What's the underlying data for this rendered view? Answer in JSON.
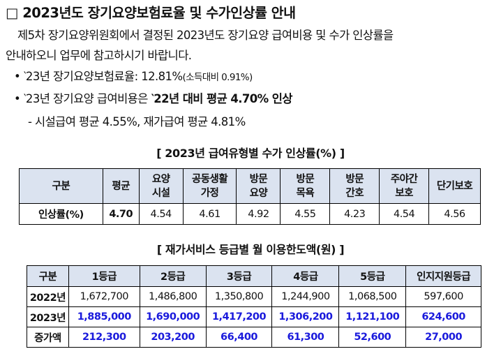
{
  "title": "□ 2023년도 장기요양보험료율 및 수가인상률 안내",
  "intro": {
    "line1": "제5차 장기요양위원회에서 결정된 2023년도 장기요양 급여비용 및 수가 인상률을",
    "line2": "안내하오니 업무에 참고하시기 바랍니다."
  },
  "bullets": {
    "b1_main": "• ‵23년 장기요양보험료율: 12.81%",
    "b1_note": "(소득대비 0.91%)",
    "b2_main": "• ‵23년 장기요양 급여비용은 ",
    "b2_strong": "‵22년 대비 평균 4.70% 인상",
    "b3": "- 시설급여 평균 4.55%, 재가급여 평균 4.81%"
  },
  "table1": {
    "caption": "[ 2023년 급여유형별 수가 인상률(%) ]",
    "headers": [
      "구분",
      "평균",
      "요양\n시설",
      "공동생활\n가정",
      "방문\n요양",
      "방문\n목욕",
      "방문\n간호",
      "주야간\n보호",
      "단기보호"
    ],
    "row_label": "인상률(%)",
    "values": [
      "4.70",
      "4.54",
      "4.61",
      "4.92",
      "4.55",
      "4.23",
      "4.54",
      "4.56"
    ]
  },
  "table2": {
    "caption": "[ 재가서비스 등급별 월 이용한도액(원) ]",
    "headers": [
      "구분",
      "1등급",
      "2등급",
      "3등급",
      "4등급",
      "5등급",
      "인지지원등급"
    ],
    "rows": [
      {
        "label": "2022년",
        "values": [
          "1,672,700",
          "1,486,800",
          "1,350,800",
          "1,244,900",
          "1,068,500",
          "597,600"
        ]
      },
      {
        "label": "2023년",
        "values": [
          "1,885,000",
          "1,690,000",
          "1,417,200",
          "1,306,200",
          "1,121,100",
          "624,600"
        ]
      },
      {
        "label": "증가액",
        "values": [
          "212,300",
          "203,200",
          "66,400",
          "61,300",
          "52,600",
          "27,000"
        ]
      }
    ]
  },
  "colors": {
    "header_bg": "#dbe3f0",
    "highlight_text": "#1a1adc"
  }
}
